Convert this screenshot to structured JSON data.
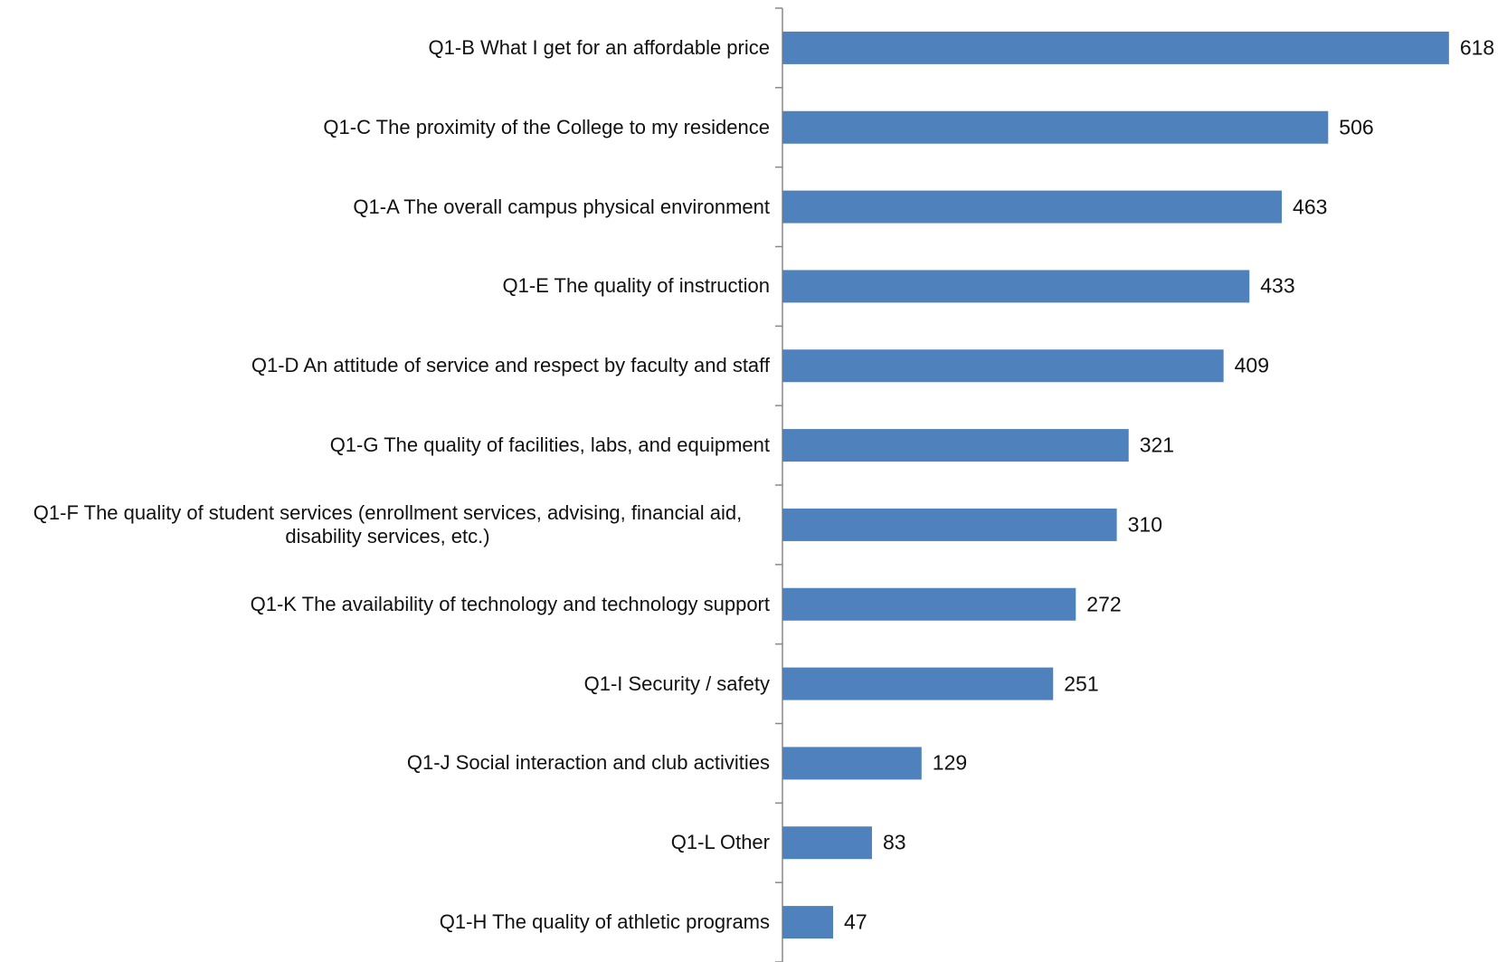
{
  "chart_data": {
    "type": "bar",
    "orientation": "horizontal",
    "categories": [
      "Q1-B What I get for an affordable price",
      "Q1-C The proximity of the College to my residence",
      "Q1-A The overall campus physical environment",
      "Q1-E The quality of instruction",
      "Q1-D An attitude of service and respect by faculty and staff",
      "Q1-G The quality of facilities, labs, and equipment",
      "Q1-F The quality of student services (enrollment services, advising, financial aid, disability services, etc.)",
      "Q1-K The availability of technology and technology support",
      "Q1-I Security / safety",
      "Q1-J Social interaction and club activities",
      "Q1-L Other",
      "Q1-H The quality of athletic programs"
    ],
    "values": [
      618,
      506,
      463,
      433,
      409,
      321,
      310,
      272,
      251,
      129,
      83,
      47
    ],
    "color": "#4f81bd",
    "xlim": [
      0,
      650
    ]
  }
}
